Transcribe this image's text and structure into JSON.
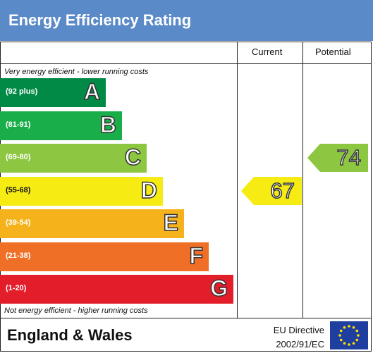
{
  "header": {
    "title": "Energy Efficiency Rating"
  },
  "columns": {
    "current": "Current",
    "potential": "Potential"
  },
  "notes": {
    "top": "Very energy efficient - lower running costs",
    "bottom": "Not energy efficient - higher running costs"
  },
  "footer": {
    "region": "England & Wales",
    "directive_line1": "EU Directive",
    "directive_line2": "2002/91/EC",
    "flag_icon": "eu-flag-icon"
  },
  "chart_data": {
    "type": "bar",
    "categories": [
      "A",
      "B",
      "C",
      "D",
      "E",
      "F",
      "G"
    ],
    "ranges": [
      "(92 plus)",
      "(81-91)",
      "(69-80)",
      "(55-68)",
      "(39-54)",
      "(21-38)",
      "(1-20)"
    ],
    "colors": [
      "#008a46",
      "#1aae4b",
      "#8dc641",
      "#f6ec14",
      "#f5b21a",
      "#ef6f27",
      "#e31d2a"
    ],
    "current": {
      "label": "Current",
      "value": 67,
      "band": "D",
      "color": "#f6ec14"
    },
    "potential": {
      "label": "Potential",
      "value": 74,
      "band": "C",
      "color": "#8dc641"
    }
  }
}
